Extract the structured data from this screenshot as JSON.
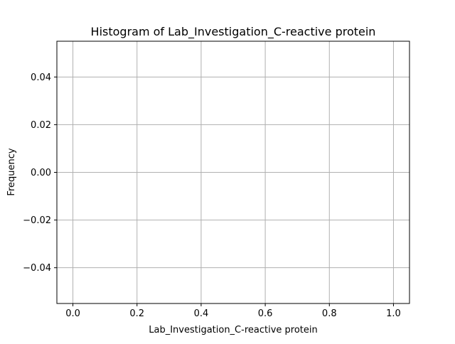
{
  "chart_data": {
    "type": "bar",
    "title": "Histogram of Lab_Investigation_C-reactive protein",
    "xlabel": "Lab_Investigation_C-reactive protein",
    "ylabel": "Frequency",
    "xlim": [
      -0.05,
      1.05
    ],
    "ylim": [
      -0.055,
      0.055
    ],
    "xticks": [
      0.0,
      0.2,
      0.4,
      0.6,
      0.8,
      1.0
    ],
    "xtick_labels": [
      "0.0",
      "0.2",
      "0.4",
      "0.6",
      "0.8",
      "1.0"
    ],
    "yticks": [
      0.04,
      0.02,
      0.0,
      -0.02,
      -0.04
    ],
    "ytick_labels": [
      "0.04",
      "0.02",
      "0.00",
      "−0.02",
      "−0.04"
    ],
    "grid": true,
    "bars": [],
    "colors": {
      "axes": "#000000",
      "grid": "#b0b0b0",
      "background": "#ffffff"
    }
  }
}
